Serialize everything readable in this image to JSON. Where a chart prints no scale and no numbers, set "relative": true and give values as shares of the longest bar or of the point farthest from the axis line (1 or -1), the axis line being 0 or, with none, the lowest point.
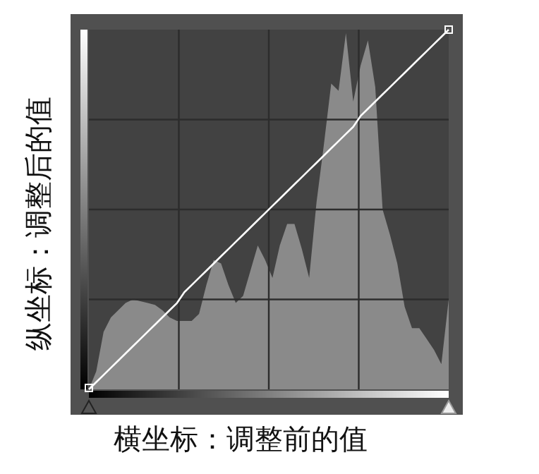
{
  "chart_data": {
    "type": "area",
    "relative": true,
    "xlabel": "横坐标：调整前的值",
    "ylabel": "纵坐标：调整后的值",
    "grid": true,
    "categories": [
      null,
      null,
      null,
      null,
      null,
      null,
      null,
      null,
      null,
      null,
      null,
      null,
      null,
      null,
      null,
      null,
      null,
      null,
      null,
      null,
      null,
      null,
      null,
      null,
      null,
      null,
      null,
      null,
      null,
      null,
      null,
      null,
      null,
      null,
      null,
      null,
      null,
      null,
      null,
      null,
      null,
      null,
      null,
      null,
      null,
      null,
      null,
      null,
      null,
      null
    ],
    "series": [
      {
        "color": "#8a8a8a",
        "values": [
          0,
          0.05,
          0.16,
          0.2,
          0.22,
          0.24,
          0.25,
          0.245,
          0.24,
          0.235,
          0.22,
          0.2,
          0.19,
          0.19,
          0.19,
          0.21,
          0.29,
          0.36,
          0.35,
          0.29,
          0.24,
          0.26,
          0.33,
          0.4,
          0.36,
          0.31,
          0.4,
          0.46,
          0.46,
          0.39,
          0.31,
          0.52,
          0.68,
          0.85,
          0.83,
          0.99,
          0.8,
          0.9,
          0.97,
          0.84,
          0.5,
          0.43,
          0.35,
          0.23,
          0.17,
          0.17,
          0.14,
          0.11,
          0.07,
          0.25
        ]
      },
      {
        "type": "line",
        "color": "#ffffff",
        "values": [
          0,
          0.02,
          0.04,
          0.06,
          0.08,
          0.1,
          0.12,
          0.14,
          0.16,
          0.18,
          0.2,
          0.22,
          0.24,
          0.27,
          0.29,
          0.31,
          0.33,
          0.35,
          0.37,
          0.39,
          0.41,
          0.43,
          0.45,
          0.47,
          0.49,
          0.51,
          0.53,
          0.55,
          0.57,
          0.59,
          0.61,
          0.63,
          0.65,
          0.67,
          0.69,
          0.71,
          0.73,
          0.76,
          0.78,
          0.8,
          0.82,
          0.84,
          0.86,
          0.88,
          0.9,
          0.92,
          0.94,
          0.96,
          0.98,
          1
        ]
      }
    ]
  }
}
